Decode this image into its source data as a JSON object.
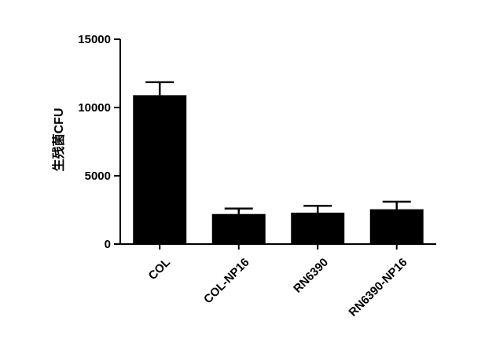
{
  "chart_data": {
    "type": "bar",
    "categories": [
      "COL",
      "COL-NP16",
      "RN6390",
      "RN6390-NP16"
    ],
    "values": [
      10900,
      2200,
      2300,
      2550
    ],
    "error_upper": [
      11850,
      2600,
      2800,
      3100
    ],
    "ylabel": "生残菌CFU",
    "xlabel": "",
    "ylim": [
      0,
      15000
    ],
    "yticks": [
      0,
      5000,
      10000,
      15000
    ],
    "ytick_labels": [
      "0",
      "5000",
      "10000",
      "15000"
    ],
    "bar_color": "#000000",
    "grid": false,
    "legend": "none"
  }
}
